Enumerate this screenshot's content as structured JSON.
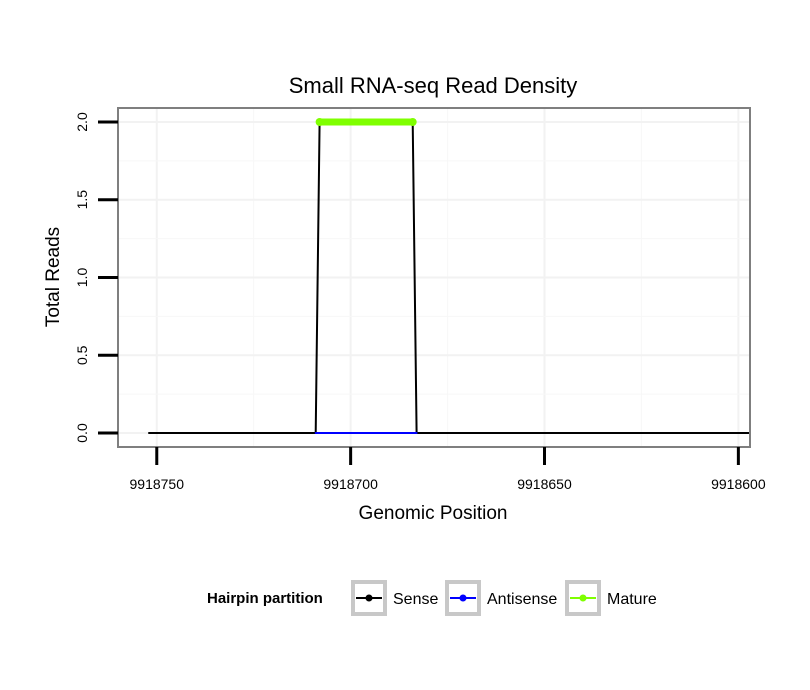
{
  "chart_data": {
    "type": "line",
    "title": "Small RNA-seq Read Density",
    "xlabel": "Genomic Position",
    "ylabel": "Total Reads",
    "x_reversed": true,
    "xlim": [
      9918760,
      9918597
    ],
    "ylim": [
      -0.09,
      2.09
    ],
    "x_ticks": [
      9918750,
      9918700,
      9918650,
      9918600
    ],
    "x_tick_labels": [
      "9918750",
      "9918700",
      "9918650",
      "9918600"
    ],
    "y_ticks": [
      0,
      0.5,
      1,
      1.5,
      2
    ],
    "y_tick_labels": [
      "0.0",
      "0.5",
      "1.0",
      "1.5",
      "2.0"
    ],
    "grid": true,
    "legend_position": "bottom",
    "legend_title": "Hairpin partition",
    "series": [
      {
        "name": "Sense",
        "color": "#000000",
        "points": false,
        "x": [
          9918752,
          9918709,
          9918708,
          9918684,
          9918683,
          9918597
        ],
        "values": [
          0,
          0,
          2,
          2,
          0,
          0
        ]
      },
      {
        "name": "Antisense",
        "color": "#0000ff",
        "points": false,
        "x": [
          9918709,
          9918683
        ],
        "values": [
          0,
          0
        ]
      },
      {
        "name": "Mature",
        "color": "#7fff00",
        "points": true,
        "x": [
          9918708,
          9918684
        ],
        "values": [
          2,
          2
        ]
      }
    ]
  }
}
